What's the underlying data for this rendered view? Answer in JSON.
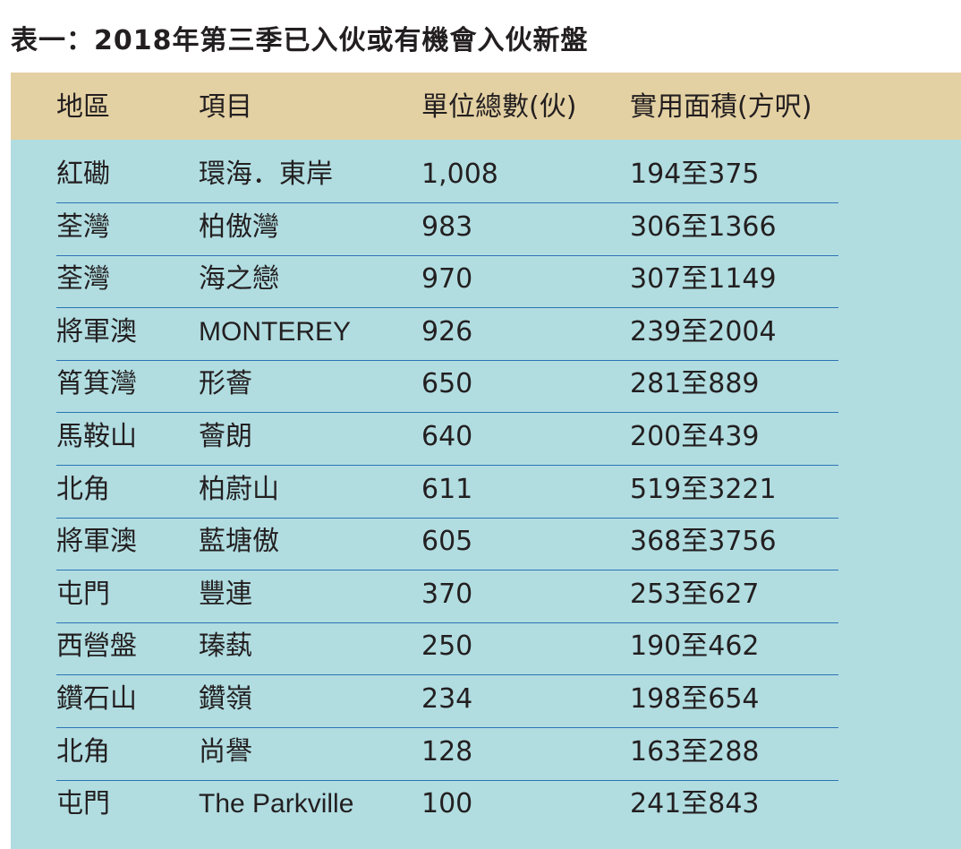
{
  "title": "表一：2018年第三季已入伙或有機會入伙新盤",
  "columns": [
    "地區",
    "項目",
    "單位總數(伙)",
    "實用面積(方呎)"
  ],
  "rows": [
    [
      "紅磡",
      "環海．東岸",
      "1,008",
      "194至375"
    ],
    [
      "荃灣",
      "柏傲灣",
      "983",
      "306至1366"
    ],
    [
      "荃灣",
      "海之戀",
      "970",
      "307至1149"
    ],
    [
      "將軍澳",
      "MONTEREY",
      "926",
      "239至2004"
    ],
    [
      "筲箕灣",
      "形薈",
      "650",
      "281至889"
    ],
    [
      "馬鞍山",
      "薈朗",
      "640",
      "200至439"
    ],
    [
      "北角",
      "柏蔚山",
      "611",
      "519至3221"
    ],
    [
      "將軍澳",
      "藍塘傲",
      "605",
      "368至3756"
    ],
    [
      "屯門",
      "豐連",
      "370",
      "253至627"
    ],
    [
      "西營盤",
      "瑧蓺",
      "250",
      "190至462"
    ],
    [
      "鑽石山",
      "鑽嶺",
      "234",
      "198至654"
    ],
    [
      "北角",
      "尚譽",
      "128",
      "163至288"
    ],
    [
      "屯門",
      "The Parkville",
      "100",
      "241至843"
    ]
  ],
  "colors": {
    "header_bg": "#e4d1a3",
    "body_bg": "#b1dde1",
    "row_divider": "#2d74b5",
    "text": "#231f20"
  }
}
